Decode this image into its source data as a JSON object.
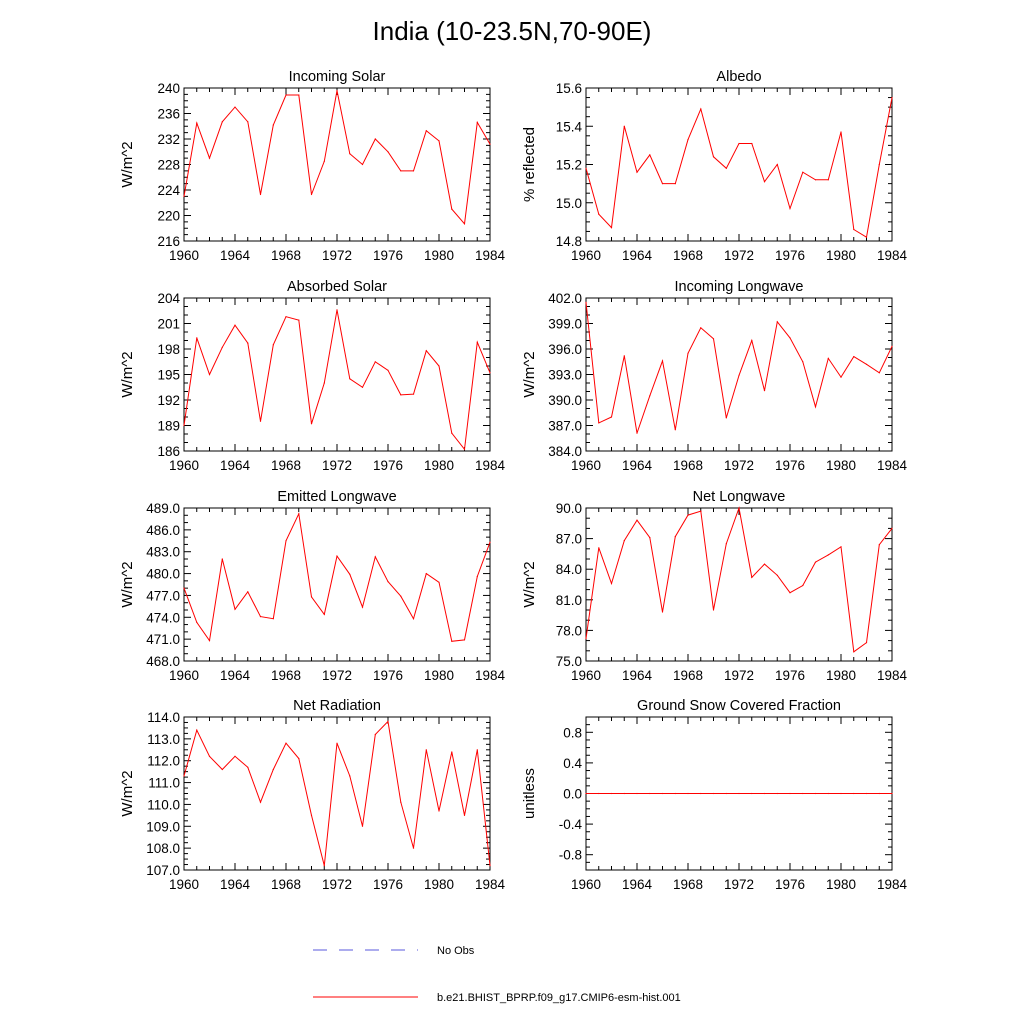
{
  "figure": {
    "title": "India (10-23.5N,70-90E)"
  },
  "legend": [
    {
      "label": "No Obs",
      "color": "#5a5adc",
      "style": "dashed"
    },
    {
      "label": "b.e21.BHIST_BPRP.f09_g17.CMIP6-esm-hist.001",
      "color": "#ff0000",
      "style": "solid"
    }
  ],
  "chart_data": [
    {
      "type": "line",
      "title": "Incoming Solar",
      "ylabel": "W/m^2",
      "xlim": [
        1960,
        1984
      ],
      "ylim": [
        216,
        240
      ],
      "xticks": [
        1960,
        1964,
        1968,
        1972,
        1976,
        1980,
        1984
      ],
      "yticks": [
        216,
        220,
        224,
        228,
        232,
        236,
        240
      ],
      "ytick_labels": [
        "216",
        "220",
        "224",
        "228",
        "232",
        "236",
        "240"
      ],
      "series": [
        {
          "color": "#ff0000",
          "x": [
            1960,
            1961,
            1962,
            1963,
            1964,
            1965,
            1966,
            1967,
            1968,
            1969,
            1970,
            1971,
            1972,
            1973,
            1974,
            1975,
            1976,
            1977,
            1978,
            1979,
            1980,
            1981,
            1982,
            1983,
            1984
          ],
          "y": [
            223.0,
            234.5,
            229.0,
            234.7,
            237.0,
            234.7,
            223.3,
            234.2,
            238.9,
            238.9,
            223.3,
            228.5,
            239.6,
            229.7,
            228.0,
            232.0,
            230.0,
            227.0,
            227.0,
            233.3,
            231.7,
            221.0,
            218.7,
            234.6,
            231.2
          ]
        }
      ]
    },
    {
      "type": "line",
      "title": "Albedo",
      "ylabel": "% reflected",
      "xlim": [
        1960,
        1984
      ],
      "ylim": [
        14.8,
        15.6
      ],
      "xticks": [
        1960,
        1964,
        1968,
        1972,
        1976,
        1980,
        1984
      ],
      "yticks": [
        14.8,
        15.0,
        15.2,
        15.4,
        15.6
      ],
      "ytick_labels": [
        "14.8",
        "15.0",
        "15.2",
        "15.4",
        "15.6"
      ],
      "series": [
        {
          "color": "#ff0000",
          "x": [
            1960,
            1961,
            1962,
            1963,
            1964,
            1965,
            1966,
            1967,
            1968,
            1969,
            1970,
            1971,
            1972,
            1973,
            1974,
            1975,
            1976,
            1977,
            1978,
            1979,
            1980,
            1981,
            1982,
            1983,
            1984
          ],
          "y": [
            15.18,
            14.94,
            14.87,
            15.4,
            15.16,
            15.25,
            15.1,
            15.1,
            15.33,
            15.49,
            15.24,
            15.18,
            15.31,
            15.31,
            15.11,
            15.2,
            14.97,
            15.16,
            15.12,
            15.12,
            15.37,
            14.86,
            14.82,
            15.2,
            15.55
          ]
        }
      ]
    },
    {
      "type": "line",
      "title": "Absorbed Solar",
      "ylabel": "W/m^2",
      "xlim": [
        1960,
        1984
      ],
      "ylim": [
        186,
        204
      ],
      "xticks": [
        1960,
        1964,
        1968,
        1972,
        1976,
        1980,
        1984
      ],
      "yticks": [
        186,
        189,
        192,
        195,
        198,
        201,
        204
      ],
      "ytick_labels": [
        "186",
        "189",
        "192",
        "195",
        "198",
        "201",
        "204"
      ],
      "series": [
        {
          "color": "#ff0000",
          "x": [
            1960,
            1961,
            1962,
            1963,
            1964,
            1965,
            1966,
            1967,
            1968,
            1969,
            1970,
            1971,
            1972,
            1973,
            1974,
            1975,
            1976,
            1977,
            1978,
            1979,
            1980,
            1981,
            1982,
            1983,
            1984
          ],
          "y": [
            189.0,
            199.3,
            195.0,
            198.2,
            200.8,
            198.7,
            189.5,
            198.5,
            201.8,
            201.4,
            189.2,
            194.0,
            202.6,
            194.5,
            193.5,
            196.5,
            195.5,
            192.6,
            192.7,
            197.8,
            196.0,
            188.1,
            186.2,
            198.8,
            195.2
          ]
        }
      ]
    },
    {
      "type": "line",
      "title": "Incoming Longwave",
      "ylabel": "W/m^2",
      "xlim": [
        1960,
        1984
      ],
      "ylim": [
        384,
        402
      ],
      "xticks": [
        1960,
        1964,
        1968,
        1972,
        1976,
        1980,
        1984
      ],
      "yticks": [
        384,
        387,
        390,
        393,
        396,
        399,
        402
      ],
      "ytick_labels": [
        "384.0",
        "387.0",
        "390.0",
        "393.0",
        "396.0",
        "399.0",
        "402.0"
      ],
      "series": [
        {
          "color": "#ff0000",
          "x": [
            1960,
            1961,
            1962,
            1963,
            1964,
            1965,
            1966,
            1967,
            1968,
            1969,
            1970,
            1971,
            1972,
            1973,
            1974,
            1975,
            1976,
            1977,
            1978,
            1979,
            1980,
            1981,
            1982,
            1983,
            1984
          ],
          "y": [
            401.5,
            387.3,
            388.0,
            395.2,
            386.1,
            390.5,
            394.6,
            386.5,
            395.5,
            398.5,
            397.2,
            387.9,
            392.9,
            397.0,
            391.1,
            399.2,
            397.3,
            394.5,
            389.2,
            394.9,
            392.7,
            395.1,
            394.2,
            393.2,
            396.3
          ]
        }
      ]
    },
    {
      "type": "line",
      "title": "Emitted Longwave",
      "ylabel": "W/m^2",
      "xlim": [
        1960,
        1984
      ],
      "ylim": [
        468,
        489
      ],
      "xticks": [
        1960,
        1964,
        1968,
        1972,
        1976,
        1980,
        1984
      ],
      "yticks": [
        468,
        471,
        474,
        477,
        480,
        483,
        486,
        489
      ],
      "ytick_labels": [
        "468.0",
        "471.0",
        "474.0",
        "477.0",
        "480.0",
        "483.0",
        "486.0",
        "489.0"
      ],
      "series": [
        {
          "color": "#ff0000",
          "x": [
            1960,
            1961,
            1962,
            1963,
            1964,
            1965,
            1966,
            1967,
            1968,
            1969,
            1970,
            1971,
            1972,
            1973,
            1974,
            1975,
            1976,
            1977,
            1978,
            1979,
            1980,
            1981,
            1982,
            1983,
            1984
          ],
          "y": [
            478.0,
            473.3,
            470.8,
            482.0,
            475.1,
            477.5,
            474.1,
            473.8,
            484.5,
            488.2,
            476.8,
            474.4,
            482.4,
            479.9,
            475.4,
            482.3,
            478.9,
            476.9,
            473.8,
            480.0,
            478.8,
            470.7,
            470.9,
            479.6,
            484.3
          ]
        }
      ]
    },
    {
      "type": "line",
      "title": "Net Longwave",
      "ylabel": "W/m^2",
      "xlim": [
        1960,
        1984
      ],
      "ylim": [
        75,
        90
      ],
      "xticks": [
        1960,
        1964,
        1968,
        1972,
        1976,
        1980,
        1984
      ],
      "yticks": [
        75,
        78,
        81,
        84,
        87,
        90
      ],
      "ytick_labels": [
        "75.0",
        "78.0",
        "81.0",
        "84.0",
        "87.0",
        "90.0"
      ],
      "series": [
        {
          "color": "#ff0000",
          "x": [
            1960,
            1961,
            1962,
            1963,
            1964,
            1965,
            1966,
            1967,
            1968,
            1969,
            1970,
            1971,
            1972,
            1973,
            1974,
            1975,
            1976,
            1977,
            1978,
            1979,
            1980,
            1981,
            1982,
            1983,
            1984
          ],
          "y": [
            77.2,
            86.1,
            82.6,
            86.8,
            88.8,
            87.1,
            79.8,
            87.2,
            89.3,
            89.7,
            80.0,
            86.5,
            90.0,
            83.2,
            84.5,
            83.4,
            81.7,
            82.4,
            84.7,
            85.4,
            86.2,
            75.9,
            76.8,
            86.4,
            88.0
          ]
        }
      ]
    },
    {
      "type": "line",
      "title": "Net Radiation",
      "ylabel": "W/m^2",
      "xlim": [
        1960,
        1984
      ],
      "ylim": [
        107,
        114
      ],
      "xticks": [
        1960,
        1964,
        1968,
        1972,
        1976,
        1980,
        1984
      ],
      "yticks": [
        107,
        108,
        109,
        110,
        111,
        112,
        113,
        114
      ],
      "ytick_labels": [
        "107.0",
        "108.0",
        "109.0",
        "110.0",
        "111.0",
        "112.0",
        "113.0",
        "114.0"
      ],
      "series": [
        {
          "color": "#ff0000",
          "x": [
            1960,
            1961,
            1962,
            1963,
            1964,
            1965,
            1966,
            1967,
            1968,
            1969,
            1970,
            1971,
            1972,
            1973,
            1974,
            1975,
            1976,
            1977,
            1978,
            1979,
            1980,
            1981,
            1982,
            1983,
            1984
          ],
          "y": [
            111.3,
            113.4,
            112.2,
            111.6,
            112.2,
            111.7,
            110.1,
            111.6,
            112.8,
            112.1,
            109.5,
            107.2,
            112.8,
            111.3,
            109.0,
            113.2,
            113.8,
            110.1,
            108.0,
            112.5,
            109.7,
            112.4,
            109.5,
            112.5,
            107.2
          ]
        }
      ]
    },
    {
      "type": "line",
      "title": "Ground Snow Covered Fraction",
      "ylabel": "unitless",
      "xlim": [
        1960,
        1984
      ],
      "ylim": [
        -1.0,
        1.0
      ],
      "xticks": [
        1960,
        1964,
        1968,
        1972,
        1976,
        1980,
        1984
      ],
      "yticks": [
        -0.8,
        -0.4,
        0.0,
        0.4,
        0.8
      ],
      "ytick_labels": [
        "-0.8",
        "-0.4",
        "0.0",
        "0.4",
        "0.8"
      ],
      "series": [
        {
          "color": "#ff0000",
          "x": [
            1960,
            1961,
            1962,
            1963,
            1964,
            1965,
            1966,
            1967,
            1968,
            1969,
            1970,
            1971,
            1972,
            1973,
            1974,
            1975,
            1976,
            1977,
            1978,
            1979,
            1980,
            1981,
            1982,
            1983,
            1984
          ],
          "y": [
            0,
            0,
            0,
            0,
            0,
            0,
            0,
            0,
            0,
            0,
            0,
            0,
            0,
            0,
            0,
            0,
            0,
            0,
            0,
            0,
            0,
            0,
            0,
            0,
            0
          ]
        }
      ]
    }
  ]
}
